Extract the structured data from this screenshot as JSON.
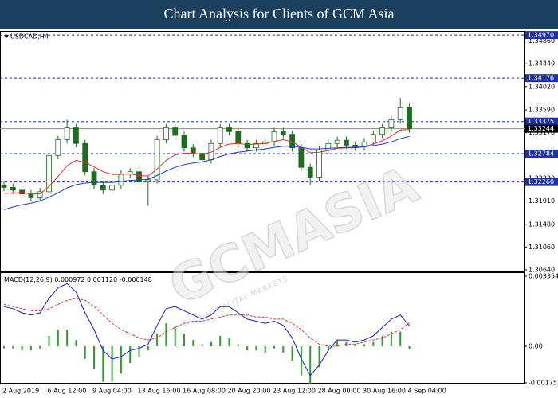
{
  "header": {
    "title": "Chart Analysis for Clients of GCM Asia"
  },
  "chart_data": [
    {
      "type": "candlestick",
      "symbol": "USDCAD,H4",
      "categories": [
        "2 Aug 2019",
        null,
        null,
        null,
        null,
        "6 Aug 12:00",
        null,
        null,
        null,
        null,
        "9 Aug 04:00",
        null,
        null,
        null,
        null,
        "13 Aug 16:00",
        null,
        null,
        null,
        null,
        "16 Aug 08:00",
        null,
        null,
        null,
        null,
        "20 Aug 20:00",
        null,
        null,
        null,
        null,
        "23 Aug 12:00",
        null,
        null,
        null,
        null,
        "28 Aug 00:00",
        null,
        null,
        null,
        null,
        "30 Aug 16:00",
        null,
        null,
        null,
        null,
        "4 Sep 04:00"
      ],
      "open": [
        1.322,
        1.3216,
        1.3211,
        1.3204,
        1.3197,
        1.3208,
        1.3275,
        1.3304,
        1.3326,
        1.3297,
        1.3245,
        1.322,
        1.3211,
        1.322,
        1.3241,
        1.3245,
        1.3226,
        1.323,
        1.3304,
        1.3326,
        1.3312,
        1.3289,
        1.3279,
        1.3267,
        1.3297,
        1.3326,
        1.3319,
        1.3297,
        1.3289,
        1.3297,
        1.33,
        1.3319,
        1.3314,
        1.3289,
        1.3253,
        1.3235,
        1.3285,
        1.3297,
        1.3303,
        1.3294,
        1.3291,
        1.33,
        1.3314,
        1.3326,
        1.3341,
        1.3363
      ],
      "high": [
        1.3227,
        1.3223,
        1.3218,
        1.3211,
        1.3215,
        1.3282,
        1.3311,
        1.3341,
        1.3333,
        1.3304,
        1.3252,
        1.3227,
        1.3227,
        1.3248,
        1.3252,
        1.3252,
        1.3237,
        1.3311,
        1.3333,
        1.3333,
        1.3319,
        1.3296,
        1.3286,
        1.3304,
        1.3333,
        1.3333,
        1.3326,
        1.3304,
        1.3304,
        1.3307,
        1.3326,
        1.3326,
        1.3321,
        1.3296,
        1.326,
        1.3292,
        1.3304,
        1.331,
        1.331,
        1.3301,
        1.3307,
        1.3321,
        1.3333,
        1.3348,
        1.3381,
        1.337
      ],
      "low": [
        1.3209,
        1.3204,
        1.3197,
        1.319,
        1.319,
        1.3201,
        1.3268,
        1.3297,
        1.329,
        1.3238,
        1.3213,
        1.3204,
        1.3204,
        1.3213,
        1.3234,
        1.3219,
        1.3182,
        1.3223,
        1.3297,
        1.3305,
        1.3282,
        1.3272,
        1.326,
        1.326,
        1.329,
        1.3312,
        1.329,
        1.3282,
        1.3282,
        1.329,
        1.3293,
        1.3307,
        1.3282,
        1.3246,
        1.3221,
        1.3228,
        1.3278,
        1.329,
        1.3287,
        1.3284,
        1.3284,
        1.3293,
        1.3307,
        1.3319,
        1.3334,
        1.3317
      ],
      "close": [
        1.3216,
        1.3211,
        1.3204,
        1.3197,
        1.3208,
        1.3275,
        1.3304,
        1.3326,
        1.3297,
        1.3245,
        1.322,
        1.3211,
        1.322,
        1.3241,
        1.3245,
        1.3226,
        1.323,
        1.3304,
        1.3326,
        1.3312,
        1.3289,
        1.3279,
        1.3267,
        1.3297,
        1.3326,
        1.3319,
        1.3297,
        1.3289,
        1.3297,
        1.33,
        1.3319,
        1.3314,
        1.3289,
        1.3253,
        1.3235,
        1.3285,
        1.3297,
        1.3303,
        1.3294,
        1.3291,
        1.33,
        1.3314,
        1.3326,
        1.3341,
        1.3363,
        1.33244
      ],
      "up_color": "#ffffff",
      "down_color": "#1f6b1f",
      "candle_stroke": "#1f6b1f",
      "lines": [
        {
          "color": "#e03030",
          "values": [
            1.3205,
            1.3206,
            1.3206,
            1.3204,
            1.3204,
            1.3218,
            1.3236,
            1.3256,
            1.3266,
            1.3262,
            1.3254,
            1.3245,
            1.324,
            1.324,
            1.3241,
            1.3238,
            1.3237,
            1.325,
            1.3266,
            1.3276,
            1.3279,
            1.3279,
            1.3277,
            1.3281,
            1.329,
            1.3296,
            1.3297,
            1.3295,
            1.3296,
            1.3297,
            1.3301,
            1.3304,
            1.33,
            1.329,
            1.328,
            1.3281,
            1.3284,
            1.3288,
            1.3289,
            1.3289,
            1.3291,
            1.3296,
            1.3302,
            1.3311,
            1.3322,
            1.3323
          ]
        },
        {
          "color": "#1a3ae0",
          "values": [
            1.3175,
            1.318,
            1.3184,
            1.3187,
            1.3191,
            1.3198,
            1.3206,
            1.3215,
            1.3221,
            1.3224,
            1.3225,
            1.3225,
            1.3225,
            1.3227,
            1.3229,
            1.323,
            1.3231,
            1.3238,
            1.3246,
            1.3253,
            1.3258,
            1.3261,
            1.3263,
            1.3267,
            1.3273,
            1.3278,
            1.3281,
            1.3283,
            1.3285,
            1.3287,
            1.329,
            1.3292,
            1.3292,
            1.329,
            1.3287,
            1.3287,
            1.3288,
            1.3289,
            1.329,
            1.329,
            1.3291,
            1.3293,
            1.3296,
            1.33,
            1.3306,
            1.331
          ]
        }
      ],
      "ylim": [
        1.3061,
        1.3503
      ],
      "yticks": [
        {
          "value": 1.3486,
          "label": "1.34860"
        },
        {
          "value": 1.3444,
          "label": "1.34440"
        },
        {
          "value": 1.3402,
          "label": "1.34020"
        },
        {
          "value": 1.3359,
          "label": "1.33590"
        },
        {
          "value": 1.3317,
          "label": "1.33170"
        },
        {
          "value": 1.3275,
          "label": "1.32750"
        },
        {
          "value": 1.3233,
          "label": "1.32330"
        },
        {
          "value": 1.3191,
          "label": "1.31910"
        },
        {
          "value": 1.3148,
          "label": "1.31480"
        },
        {
          "value": 1.3106,
          "label": "1.31060"
        },
        {
          "value": 1.3064,
          "label": "1.30640"
        }
      ],
      "levels": [
        {
          "value": 1.3497,
          "label": "1.34970"
        },
        {
          "value": 1.34176,
          "label": "1.34176"
        },
        {
          "value": 1.33375,
          "label": "1.33375"
        },
        {
          "value": 1.32784,
          "label": "1.32784"
        },
        {
          "value": 1.3226,
          "label": "1.32260"
        }
      ],
      "level_color": "#1f2fa8",
      "current": {
        "value": 1.33244,
        "label": "1.33244"
      },
      "watermark": {
        "title": "GCMASIA",
        "subtitle": "GLOBAL CAPITAL MARKETS"
      }
    },
    {
      "type": "macd",
      "label": "MACD(12,26,9)",
      "readout": [
        "0.000972",
        "0.001120",
        "-0.000148"
      ],
      "main": {
        "color": "#1a1ae0",
        "values": [
          0.0019,
          0.0018,
          0.0016,
          0.0015,
          0.0016,
          0.0023,
          0.0028,
          0.003,
          0.0026,
          0.0016,
          0.0008,
          -0.0002,
          -0.0006,
          -0.0005,
          -0.0002,
          -0.0001,
          0.0001,
          0.001,
          0.0018,
          0.0019,
          0.0017,
          0.0015,
          0.0013,
          0.0015,
          0.0019,
          0.0019,
          0.0016,
          0.0013,
          0.0012,
          0.0011,
          0.0012,
          0.001,
          0.0004,
          -0.0006,
          -0.0014,
          -0.0009,
          -0.0002,
          0.0003,
          0.0003,
          0.0002,
          0.0003,
          0.0005,
          0.0009,
          0.0013,
          0.0015,
          0.000972
        ]
      },
      "signal": {
        "color": "#e03030",
        "values": [
          0.002,
          0.0019,
          0.0018,
          0.0017,
          0.0017,
          0.0018,
          0.002,
          0.0022,
          0.0023,
          0.0022,
          0.0019,
          0.0015,
          0.0011,
          0.0008,
          0.0006,
          0.0004,
          0.0003,
          0.0004,
          0.0007,
          0.0009,
          0.0011,
          0.0012,
          0.0012,
          0.0013,
          0.0014,
          0.0015,
          0.0015,
          0.0015,
          0.0014,
          0.0014,
          0.0013,
          0.0013,
          0.0011,
          0.0008,
          0.0004,
          0.0001,
          0.0,
          0.0,
          0.0001,
          0.0001,
          0.0002,
          0.0003,
          0.0004,
          0.0006,
          0.0008,
          0.00112
        ]
      },
      "histogram": {
        "color": "#2ca02c",
        "values": [
          -0.0001,
          -0.0001,
          -0.0002,
          -0.0002,
          -0.0001,
          0.0005,
          0.0008,
          0.0008,
          0.0003,
          -0.0006,
          -0.0011,
          -0.0017,
          -0.0017,
          -0.0013,
          -0.0008,
          -0.0005,
          -0.0002,
          0.0006,
          0.0011,
          0.001,
          0.0006,
          0.0003,
          0.0001,
          0.0002,
          0.0005,
          0.0004,
          0.0001,
          -0.0002,
          -0.0002,
          -0.0003,
          -0.0001,
          -0.0003,
          -0.0007,
          -0.0014,
          -0.0018,
          -0.001,
          -0.0002,
          0.0003,
          0.0002,
          0.0001,
          0.0001,
          0.0002,
          0.0005,
          0.0007,
          0.0007,
          -0.000148
        ]
      },
      "ylim": [
        -0.00179,
        0.00343
      ],
      "yticks": [
        0.003354,
        {
          "value": 0,
          "label": "0.00"
        },
        -0.001752
      ]
    }
  ]
}
